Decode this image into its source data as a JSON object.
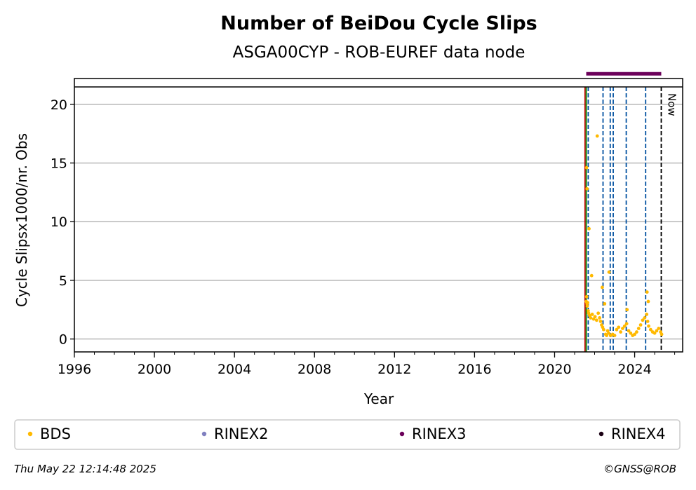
{
  "chart_data": {
    "type": "scatter",
    "title": "Number of BeiDou Cycle Slips",
    "subtitle": "ASGA00CYP - ROB-EUREF data node",
    "xlabel": "Year",
    "ylabel": "Cycle Slipsx1000/nr. Obs",
    "xlim": [
      1996,
      2026.4
    ],
    "ylim": [
      -1.1,
      22.2
    ],
    "x_ticks": [
      1996,
      2000,
      2004,
      2008,
      2012,
      2016,
      2020,
      2024
    ],
    "y_ticks": [
      0,
      5,
      10,
      15,
      20
    ],
    "grid": "horizontal",
    "legend_placement": "bottom",
    "series": [
      {
        "name": "BDS",
        "color": "#ffb900",
        "x": [
          2021.58,
          2021.6,
          2021.62,
          2021.63,
          2021.65,
          2021.68,
          2021.7,
          2021.75,
          2021.8,
          2021.88,
          2021.95,
          2022.02,
          2022.1,
          2022.18,
          2022.25,
          2022.3,
          2022.35,
          2022.4,
          2022.45,
          2022.55,
          2022.6,
          2022.65,
          2022.7,
          2022.8,
          2022.9,
          2023.0,
          2023.1,
          2023.2,
          2023.3,
          2023.4,
          2023.5,
          2023.6,
          2023.7,
          2023.8,
          2023.9,
          2024.0,
          2024.1,
          2024.2,
          2024.3,
          2024.4,
          2024.5,
          2024.6,
          2024.65,
          2024.7,
          2024.8,
          2024.9,
          2025.0,
          2025.1,
          2025.2,
          2025.3,
          2025.35,
          2021.6,
          2021.62,
          2021.72,
          2021.85,
          2022.13,
          2022.38,
          2022.5,
          2022.72,
          2023.62,
          2024.62,
          2024.68
        ],
        "y": [
          3.2,
          3.6,
          3.0,
          2.8,
          3.1,
          2.4,
          2.2,
          2.0,
          1.8,
          2.1,
          1.7,
          1.9,
          1.6,
          2.2,
          1.8,
          1.5,
          1.2,
          1.0,
          0.8,
          0.4,
          0.3,
          0.7,
          0.5,
          0.3,
          0.4,
          0.3,
          0.8,
          1.0,
          0.6,
          0.9,
          1.1,
          1.3,
          0.7,
          0.5,
          0.3,
          0.4,
          0.6,
          0.9,
          1.2,
          1.6,
          1.8,
          2.1,
          1.5,
          1.1,
          0.8,
          0.6,
          0.5,
          0.7,
          0.9,
          0.6,
          0.4,
          14.6,
          12.8,
          9.4,
          5.4,
          17.3,
          4.4,
          3.0,
          5.7,
          2.5,
          4.0,
          3.2
        ]
      },
      {
        "name": "RINEX2",
        "color": "#8080c0",
        "x": [],
        "y": []
      },
      {
        "name": "RINEX3",
        "color": "#6b005a",
        "x": [
          2021.58,
          2025.33
        ],
        "y": [
          22.6,
          22.6
        ]
      },
      {
        "name": "RINEX4",
        "color": "#1a0014",
        "x": [],
        "y": []
      }
    ],
    "vlines": [
      {
        "x": 2021.52,
        "color": "#cc0000",
        "style": "solid"
      },
      {
        "x": 2021.58,
        "color": "#008000",
        "style": "solid"
      },
      {
        "x": 2021.68,
        "color": "#0050a0",
        "style": "dashed"
      },
      {
        "x": 2022.42,
        "color": "#0050a0",
        "style": "dashed"
      },
      {
        "x": 2022.78,
        "color": "#0050a0",
        "style": "dashed"
      },
      {
        "x": 2022.93,
        "color": "#0050a0",
        "style": "dashed"
      },
      {
        "x": 2023.58,
        "color": "#0050a0",
        "style": "dashed"
      },
      {
        "x": 2024.55,
        "color": "#0050a0",
        "style": "dashed"
      },
      {
        "x": 2025.33,
        "color": "#000000",
        "style": "dashed"
      }
    ],
    "annotation": "Now"
  },
  "footer": {
    "timestamp": "Thu May 22 12:14:48 2025",
    "credit": "©GNSS@ROB"
  }
}
